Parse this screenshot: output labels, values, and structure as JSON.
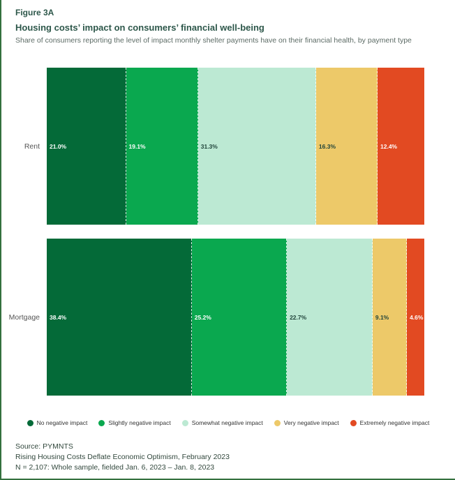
{
  "page": {
    "figure_label": "Figure 3A",
    "title": "Housing costs’ impact on consumers’ financial well-being",
    "subtitle": "Share of consumers reporting the level of impact monthly shelter payments have on their financial health, by payment type"
  },
  "chart_data": {
    "type": "bar",
    "variant": "stacked-horizontal",
    "categories": [
      "Rent",
      "Mortgage"
    ],
    "series": [
      {
        "name": "No negative impact",
        "color": "#046a38",
        "text_tone": "light",
        "values": [
          21.0,
          38.4
        ]
      },
      {
        "name": "Slightly negative impact",
        "color": "#0aa84f",
        "text_tone": "light",
        "values": [
          19.1,
          25.2
        ]
      },
      {
        "name": "Somewhat negative impact",
        "color": "#bce9d3",
        "text_tone": "dark",
        "values": [
          31.3,
          22.7
        ]
      },
      {
        "name": "Very negative impact",
        "color": "#edc969",
        "text_tone": "dark",
        "values": [
          16.3,
          9.1
        ]
      },
      {
        "name": "Extremely negative impact",
        "color": "#e24a22",
        "text_tone": "light",
        "values": [
          12.4,
          4.6
        ]
      }
    ],
    "value_suffix": "%",
    "value_decimals": 1,
    "xlim": [
      0,
      100
    ],
    "grid": false,
    "legend_position": "bottom-center"
  },
  "footer": {
    "source": "Source: PYMNTS",
    "report": "Rising Housing Costs Deflate Economic Optimism, February 2023",
    "sample": "N = 2,107: Whole sample, fielded Jan. 6, 2023 – Jan. 8, 2023"
  },
  "style": {
    "accent_border_color": "#34703e",
    "title_color": "#2d574a"
  }
}
